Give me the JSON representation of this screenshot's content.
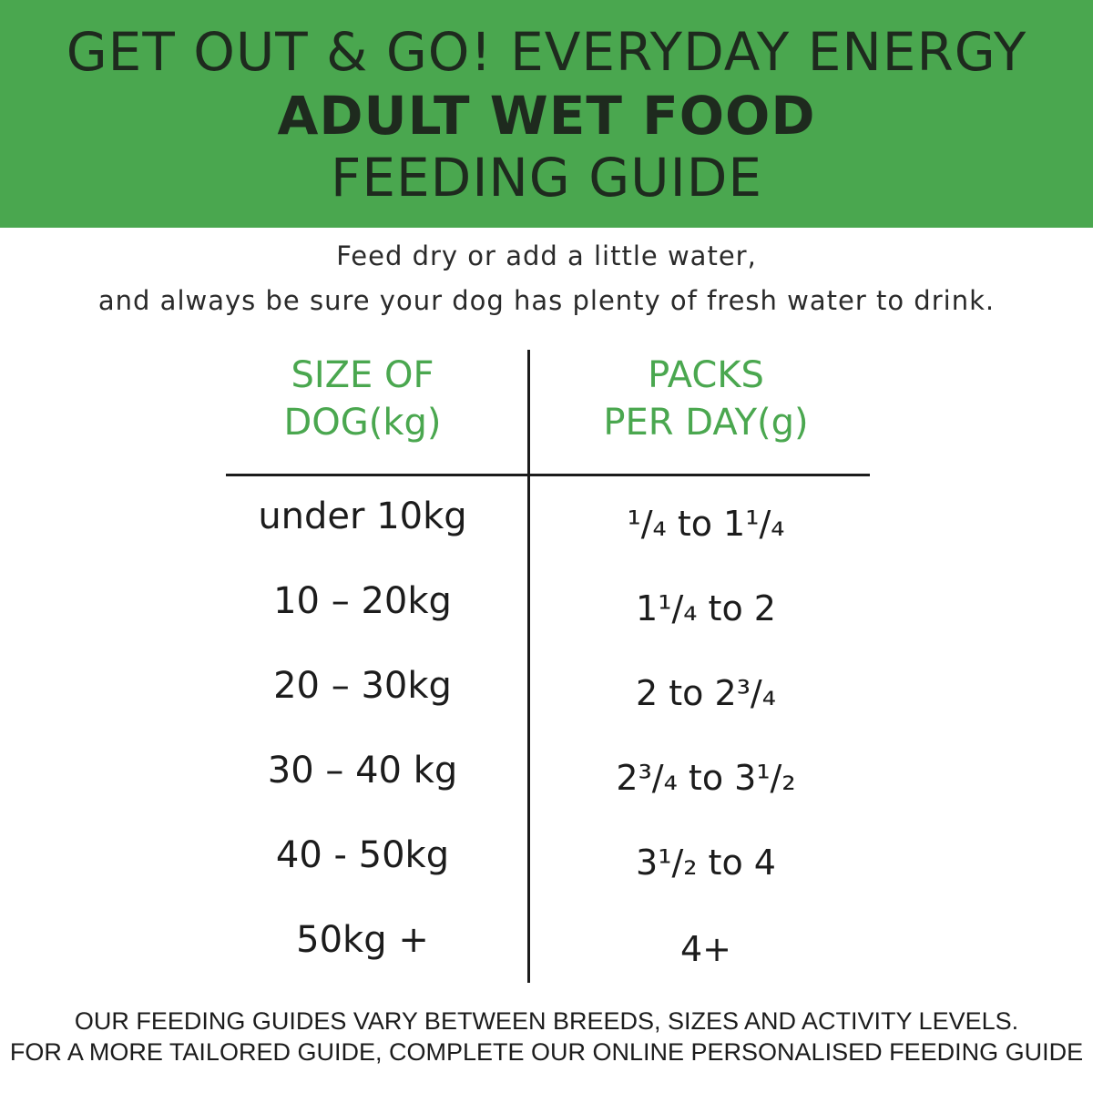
{
  "header": {
    "line1": "GET OUT & GO! EVERYDAY ENERGY",
    "line2": "ADULT WET FOOD",
    "line3": "FEEDING GUIDE",
    "background_color": "#4aa74f"
  },
  "intro": {
    "line1": "Feed dry or add a little water,",
    "line2": "and always be sure your dog has plenty of fresh water to drink."
  },
  "table": {
    "headers": {
      "size_line1": "SIZE OF",
      "size_line2": "DOG(kg)",
      "packs_line1": "PACKS",
      "packs_line2": "PER DAY(g)"
    },
    "header_color": "#4aa74f",
    "rows": [
      {
        "size": "under 10kg",
        "packs": "¹/₄ to 1¹/₄"
      },
      {
        "size": "10 – 20kg",
        "packs": "1¹/₄ to 2"
      },
      {
        "size": "20 – 30kg",
        "packs": "2  to 2³/₄"
      },
      {
        "size": "30 – 40 kg",
        "packs": "2³/₄ to 3¹/₂"
      },
      {
        "size": "40 - 50kg",
        "packs": "3¹/₂ to 4"
      },
      {
        "size": "50kg +",
        "packs": "4+"
      }
    ]
  },
  "footer": {
    "line1": "OUR FEEDING GUIDES VARY BETWEEN BREEDS, SIZES AND ACTIVITY LEVELS.",
    "line2": "FOR A MORE TAILORED GUIDE, COMPLETE OUR ONLINE PERSONALISED FEEDING GUIDE"
  }
}
